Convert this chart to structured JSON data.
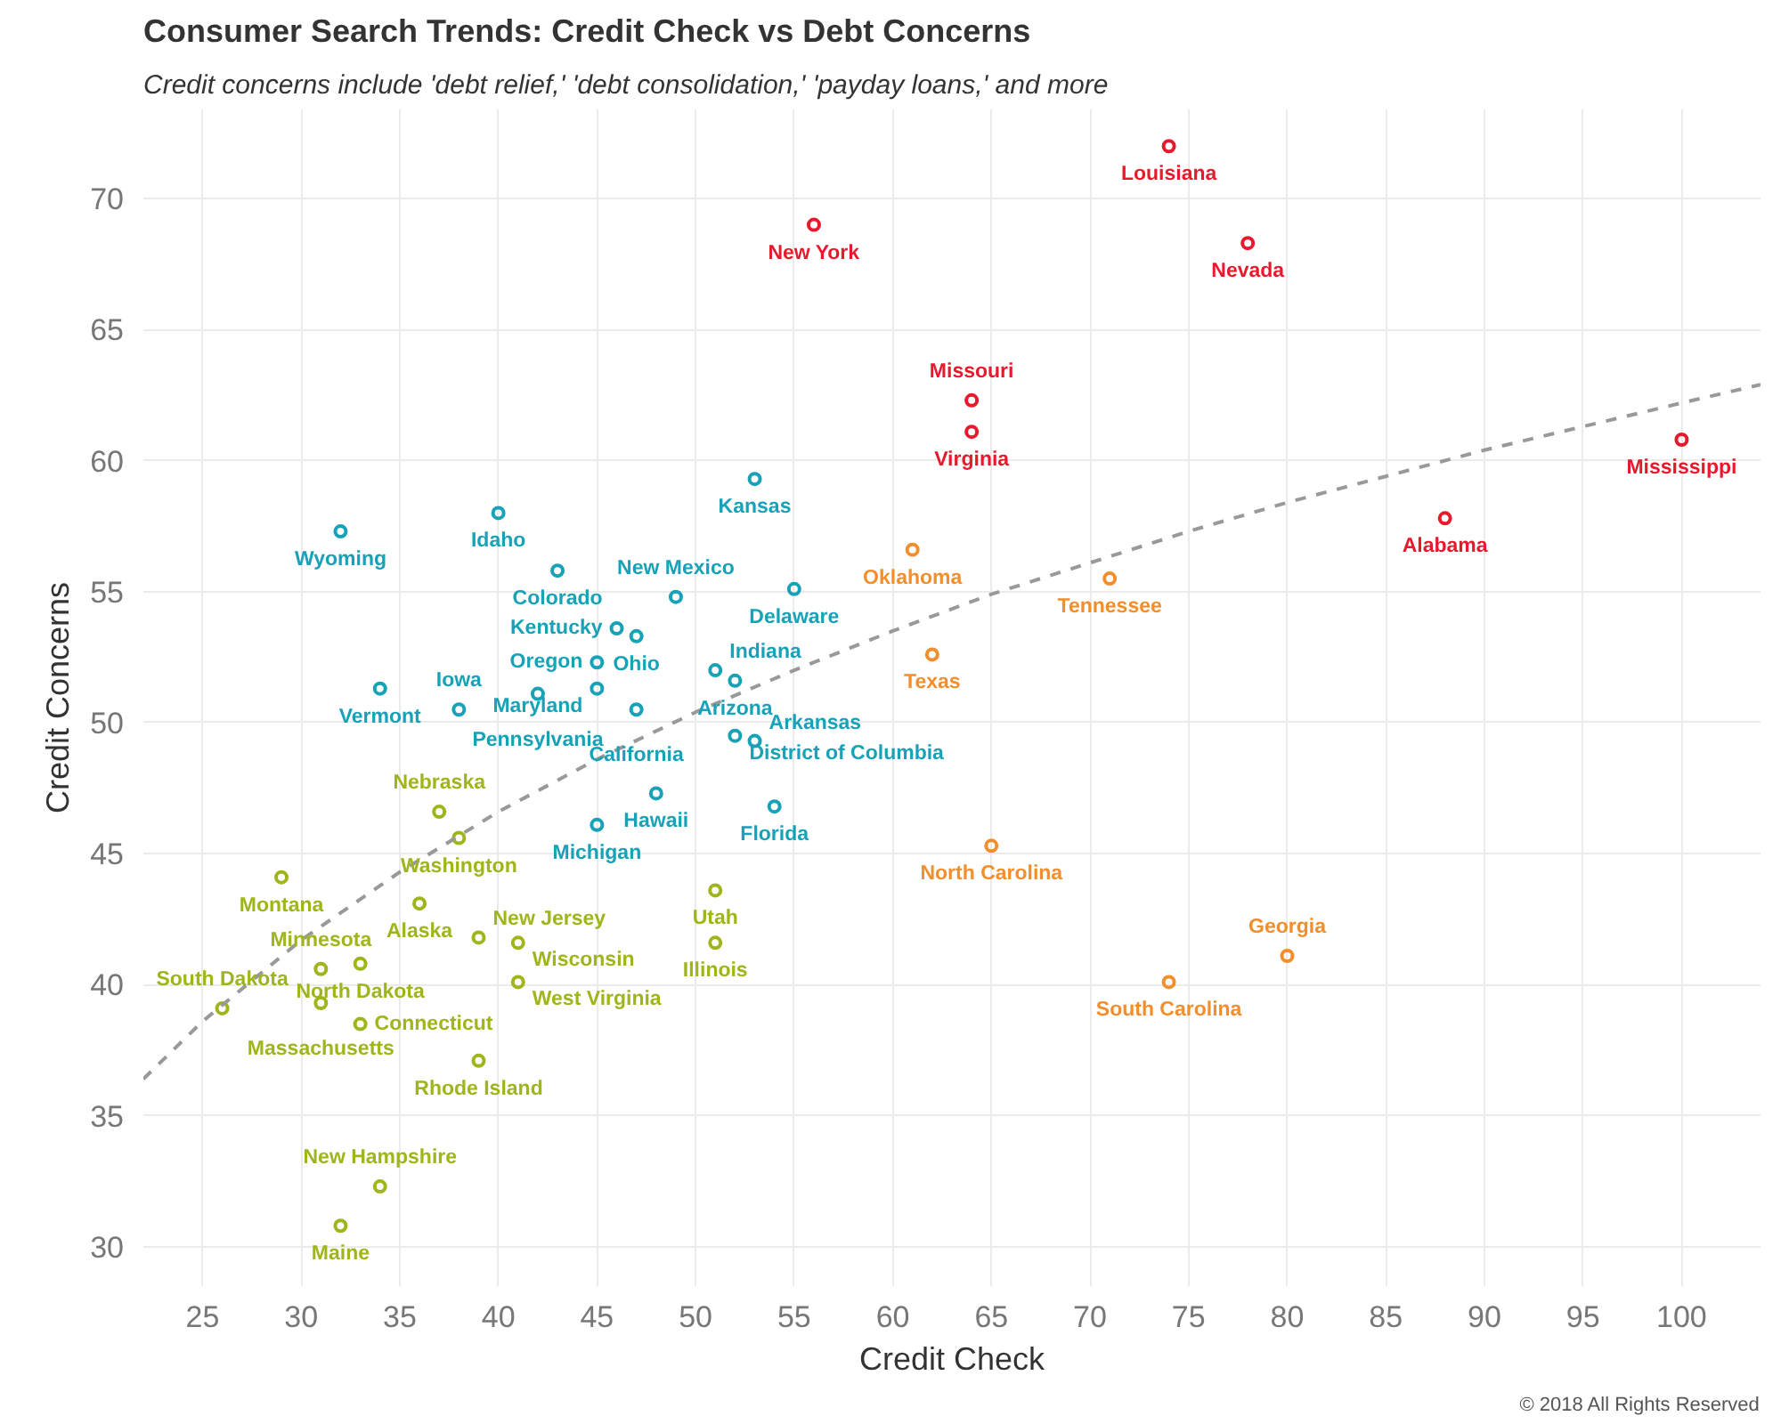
{
  "chart_data": {
    "type": "scatter",
    "title": "Consumer Search Trends: Credit Check vs Debt Concerns",
    "subtitle": "Credit concerns include 'debt relief,' 'debt consolidation,' 'payday loans,' and more",
    "xlabel": "Credit Check",
    "ylabel": "Credit Concerns",
    "xlim": [
      22,
      104
    ],
    "ylim": [
      28.5,
      73.4
    ],
    "xticks": [
      25,
      30,
      35,
      40,
      45,
      50,
      55,
      60,
      65,
      70,
      75,
      80,
      85,
      90,
      95,
      100
    ],
    "yticks": [
      30,
      35,
      40,
      45,
      50,
      55,
      60,
      65,
      70
    ],
    "grid": true,
    "marker": "circle",
    "series": [
      {
        "color": "#e8192c",
        "x": [
          74,
          56,
          78,
          64,
          64,
          100,
          88
        ],
        "values": [
          72.0,
          69.0,
          68.3,
          62.3,
          61.1,
          60.8,
          57.8
        ]
      },
      {
        "color": "#f28e2b",
        "x": [
          61,
          71,
          62,
          65,
          74,
          80
        ],
        "values": [
          56.6,
          55.5,
          52.6,
          45.3,
          40.1,
          41.1
        ]
      },
      {
        "color": "#17a2b8",
        "x": [
          53,
          32,
          40,
          43,
          55,
          49,
          46,
          47,
          45,
          51,
          52,
          42,
          45,
          47,
          38,
          34,
          52,
          53,
          48,
          45,
          54
        ],
        "values": [
          59.3,
          57.3,
          58.0,
          55.8,
          55.1,
          54.8,
          53.6,
          53.3,
          52.3,
          52.0,
          51.6,
          51.1,
          51.3,
          50.5,
          50.5,
          51.3,
          49.5,
          49.3,
          47.3,
          46.1,
          46.8
        ]
      },
      {
        "color": "#a0b51a",
        "x": [
          37,
          38,
          29,
          36,
          39,
          41,
          51,
          51,
          31,
          33,
          31,
          33,
          26,
          41,
          39,
          34,
          32
        ],
        "values": [
          46.6,
          45.6,
          44.1,
          43.1,
          41.8,
          41.6,
          43.6,
          41.6,
          40.6,
          40.8,
          39.3,
          38.5,
          39.1,
          40.1,
          37.1,
          32.3,
          30.8
        ]
      },
      {
        "type": "line",
        "marker": "none",
        "color": "#999999",
        "line_style": "dashed",
        "x": [
          22,
          25,
          30,
          35,
          40,
          45,
          50,
          55,
          60,
          65,
          70,
          75,
          80,
          85,
          90,
          95,
          100,
          104
        ],
        "values": [
          36.4,
          38.6,
          41.7,
          44.3,
          46.6,
          48.6,
          50.4,
          52.0,
          53.5,
          54.9,
          56.1,
          57.3,
          58.4,
          59.4,
          60.4,
          61.3,
          62.2,
          62.9
        ]
      }
    ],
    "annotations": [
      {
        "text": "Louisiana",
        "x": 74,
        "y": 72.0
      },
      {
        "text": "New York",
        "x": 56,
        "y": 69.0
      },
      {
        "text": "Nevada",
        "x": 78,
        "y": 68.3
      },
      {
        "text": "Missouri",
        "x": 64,
        "y": 62.3
      },
      {
        "text": "Virginia",
        "x": 64,
        "y": 61.1
      },
      {
        "text": "Mississippi",
        "x": 100,
        "y": 60.8
      },
      {
        "text": "Alabama",
        "x": 88,
        "y": 57.8
      },
      {
        "text": "Oklahoma",
        "x": 61,
        "y": 56.6
      },
      {
        "text": "Tennessee",
        "x": 71,
        "y": 55.5
      },
      {
        "text": "Texas",
        "x": 62,
        "y": 52.6
      },
      {
        "text": "North Carolina",
        "x": 65,
        "y": 45.3
      },
      {
        "text": "South Carolina",
        "x": 74,
        "y": 40.1
      },
      {
        "text": "Georgia",
        "x": 80,
        "y": 41.1
      },
      {
        "text": "Kansas",
        "x": 53,
        "y": 59.3
      },
      {
        "text": "Wyoming",
        "x": 32,
        "y": 57.3
      },
      {
        "text": "Idaho",
        "x": 40,
        "y": 58.0
      },
      {
        "text": "Colorado",
        "x": 43,
        "y": 55.8
      },
      {
        "text": "Delaware",
        "x": 55,
        "y": 55.1
      },
      {
        "text": "New Mexico",
        "x": 49,
        "y": 54.8
      },
      {
        "text": "Kentucky",
        "x": 46,
        "y": 53.6
      },
      {
        "text": "Ohio",
        "x": 47,
        "y": 53.3
      },
      {
        "text": "Oregon",
        "x": 45,
        "y": 52.3
      },
      {
        "text": "Indiana",
        "x": 51,
        "y": 52.0
      },
      {
        "text": "Arizona",
        "x": 52,
        "y": 51.6
      },
      {
        "text": "Pennsylvania",
        "x": 42,
        "y": 51.1
      },
      {
        "text": "Maryland",
        "x": 45,
        "y": 51.3
      },
      {
        "text": "California",
        "x": 47,
        "y": 50.5
      },
      {
        "text": "Iowa",
        "x": 38,
        "y": 50.5
      },
      {
        "text": "Vermont",
        "x": 34,
        "y": 51.3
      },
      {
        "text": "District of Columbia",
        "x": 52,
        "y": 49.5
      },
      {
        "text": "Arkansas",
        "x": 53,
        "y": 49.3
      },
      {
        "text": "Hawaii",
        "x": 48,
        "y": 47.3
      },
      {
        "text": "Michigan",
        "x": 45,
        "y": 46.1
      },
      {
        "text": "Florida",
        "x": 54,
        "y": 46.8
      },
      {
        "text": "Nebraska",
        "x": 37,
        "y": 46.6
      },
      {
        "text": "Washington",
        "x": 38,
        "y": 45.6
      },
      {
        "text": "Montana",
        "x": 29,
        "y": 44.1
      },
      {
        "text": "Alaska",
        "x": 36,
        "y": 43.1
      },
      {
        "text": "New Jersey",
        "x": 39,
        "y": 41.8
      },
      {
        "text": "Wisconsin",
        "x": 41,
        "y": 41.6
      },
      {
        "text": "Utah",
        "x": 51,
        "y": 43.6
      },
      {
        "text": "Illinois",
        "x": 51,
        "y": 41.6
      },
      {
        "text": "Minnesota",
        "x": 31,
        "y": 40.6
      },
      {
        "text": "North Dakota",
        "x": 33,
        "y": 40.8
      },
      {
        "text": "Massachusetts",
        "x": 31,
        "y": 39.3
      },
      {
        "text": "Connecticut",
        "x": 33,
        "y": 38.5
      },
      {
        "text": "South Dakota",
        "x": 26,
        "y": 39.1
      },
      {
        "text": "West Virginia",
        "x": 41,
        "y": 40.1
      },
      {
        "text": "Rhode Island",
        "x": 39,
        "y": 37.1
      },
      {
        "text": "New Hampshire",
        "x": 34,
        "y": 32.3
      },
      {
        "text": "Maine",
        "x": 32,
        "y": 30.8
      },
      "© 2018 All Rights Reserved"
    ]
  }
}
